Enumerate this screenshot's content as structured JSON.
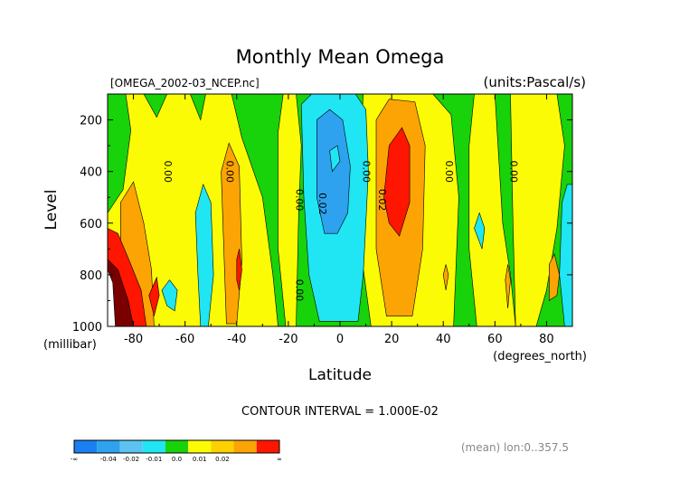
{
  "chart_data": {
    "type": "heatmap",
    "title": "Monthly Mean Omega",
    "file_label": "[OMEGA_2002-03_NCEP.nc]",
    "units_label": "(units:Pascal/s)",
    "xlabel": "Latitude",
    "x_units": "(degrees_north)",
    "ylabel": "Level",
    "y_units": "(millibar)",
    "xlim": [
      -90,
      90
    ],
    "ylim": [
      1000,
      100
    ],
    "x_ticks": [
      -80,
      -60,
      -40,
      -20,
      0,
      20,
      40,
      60,
      80
    ],
    "x_tick_labels": [
      "-80",
      "-60",
      "-40",
      "-20",
      "0",
      "20",
      "40",
      "60",
      "80"
    ],
    "y_ticks": [
      200,
      400,
      600,
      800,
      1000
    ],
    "y_tick_labels": [
      "200",
      "400",
      "600",
      "800",
      "1000"
    ],
    "contour_interval_text": "CONTOUR INTERVAL = 1.000E-02",
    "footer_note": "(mean) lon:0..357.5",
    "contour_labels": [
      {
        "text": "0.00",
        "lat": -68,
        "level": 400
      },
      {
        "text": "0.00",
        "lat": -44,
        "level": 400
      },
      {
        "text": "0.00",
        "lat": -17,
        "level": 510
      },
      {
        "text": "0.02",
        "lat": -8,
        "level": 525
      },
      {
        "text": "0.00",
        "lat": 9,
        "level": 400
      },
      {
        "text": "0.02",
        "lat": 15,
        "level": 510
      },
      {
        "text": "0.00",
        "lat": 41,
        "level": 400
      },
      {
        "text": "0.00",
        "lat": 66,
        "level": 400
      },
      {
        "text": "0.00",
        "lat": -17,
        "level": 860
      }
    ],
    "colorbar": {
      "colors": [
        "#1a7ff0",
        "#2ea2ef",
        "#5cc2f2",
        "#1fe6f2",
        "#18d20a",
        "#fbfb05",
        "#ffd000",
        "#fca404",
        "#ff1600"
      ],
      "labels": [
        "-∞",
        "-0.04",
        "-0.02",
        "-0.01",
        "0.0",
        "0.01",
        "0.02",
        "∞"
      ]
    },
    "regions": [
      {
        "color": "#18d20a",
        "lat": [
          -90,
          90
        ],
        "level": [
          100,
          1000
        ]
      },
      {
        "color": "#fbfb05",
        "poly": [
          [
            -90,
            560
          ],
          [
            -84,
            470
          ],
          [
            -81,
            240
          ],
          [
            -83,
            100
          ],
          [
            -76,
            100
          ],
          [
            -71,
            190
          ],
          [
            -67,
            100
          ],
          [
            -58,
            100
          ],
          [
            -54,
            200
          ],
          [
            -52,
            100
          ],
          [
            -42,
            100
          ],
          [
            -38,
            270
          ],
          [
            -30,
            500
          ],
          [
            -26,
            800
          ],
          [
            -24,
            1000
          ],
          [
            -90,
            1000
          ]
        ]
      },
      {
        "color": "#fbfb05",
        "poly": [
          [
            -22,
            100
          ],
          [
            -17,
            100
          ],
          [
            -15,
            300
          ],
          [
            -16,
            560
          ],
          [
            -17,
            1000
          ],
          [
            -21,
            1000
          ],
          [
            -24,
            700
          ],
          [
            -24,
            250
          ]
        ]
      },
      {
        "color": "#fbfb05",
        "poly": [
          [
            9,
            100
          ],
          [
            15,
            100
          ],
          [
            21,
            100
          ],
          [
            36,
            100
          ],
          [
            43,
            180
          ],
          [
            46,
            500
          ],
          [
            44,
            1000
          ],
          [
            12,
            1000
          ],
          [
            8,
            700
          ],
          [
            8,
            300
          ]
        ]
      },
      {
        "color": "#fbfb05",
        "poly": [
          [
            52,
            100
          ],
          [
            60,
            100
          ],
          [
            63,
            600
          ],
          [
            66,
            800
          ],
          [
            68,
            1000
          ],
          [
            53,
            1000
          ],
          [
            50,
            700
          ],
          [
            50,
            300
          ]
        ]
      },
      {
        "color": "#fbfb05",
        "poly": [
          [
            66,
            100
          ],
          [
            84,
            100
          ],
          [
            87,
            300
          ],
          [
            84,
            620
          ],
          [
            80,
            860
          ],
          [
            76,
            1000
          ],
          [
            68,
            1000
          ],
          [
            67,
            600
          ]
        ]
      },
      {
        "color": "#fca404",
        "poly": [
          [
            -85,
            1000
          ],
          [
            -85,
            520
          ],
          [
            -80,
            440
          ],
          [
            -76,
            600
          ],
          [
            -73,
            780
          ],
          [
            -72,
            1000
          ]
        ]
      },
      {
        "color": "#fca404",
        "poly": [
          [
            -46,
            400
          ],
          [
            -43,
            290
          ],
          [
            -39,
            380
          ],
          [
            -38,
            750
          ],
          [
            -40,
            990
          ],
          [
            -44,
            990
          ],
          [
            -45,
            700
          ]
        ]
      },
      {
        "color": "#fca404",
        "poly": [
          [
            14,
            200
          ],
          [
            19,
            120
          ],
          [
            29,
            130
          ],
          [
            33,
            300
          ],
          [
            32,
            700
          ],
          [
            28,
            960
          ],
          [
            18,
            960
          ],
          [
            14,
            700
          ]
        ]
      },
      {
        "color": "#fca404",
        "poly": [
          [
            40,
            800
          ],
          [
            41,
            760
          ],
          [
            42,
            800
          ],
          [
            41,
            860
          ]
        ]
      },
      {
        "color": "#fca404",
        "poly": [
          [
            64,
            820
          ],
          [
            65,
            760
          ],
          [
            66,
            820
          ],
          [
            65,
            930
          ]
        ]
      },
      {
        "color": "#fca404",
        "poly": [
          [
            81,
            760
          ],
          [
            83,
            720
          ],
          [
            85,
            800
          ],
          [
            84,
            880
          ],
          [
            81,
            900
          ]
        ]
      },
      {
        "color": "#ff1600",
        "poly": [
          [
            -90,
            620
          ],
          [
            -86,
            640
          ],
          [
            -81,
            760
          ],
          [
            -77,
            860
          ],
          [
            -75,
            1000
          ],
          [
            -90,
            1000
          ]
        ]
      },
      {
        "color": "#ff1600",
        "poly": [
          [
            -74,
            880
          ],
          [
            -71,
            810
          ],
          [
            -70,
            880
          ],
          [
            -72,
            960
          ]
        ]
      },
      {
        "color": "#ff1600",
        "poly": [
          [
            19,
            300
          ],
          [
            24,
            230
          ],
          [
            27,
            300
          ],
          [
            27,
            520
          ],
          [
            23,
            650
          ],
          [
            19,
            600
          ],
          [
            17,
            500
          ]
        ]
      },
      {
        "color": "#ff1600",
        "poly": [
          [
            -40,
            740
          ],
          [
            -39,
            700
          ],
          [
            -38,
            780
          ],
          [
            -39,
            860
          ],
          [
            -40,
            820
          ]
        ]
      },
      {
        "color": "#7a0000",
        "poly": [
          [
            -90,
            740
          ],
          [
            -86,
            780
          ],
          [
            -82,
            900
          ],
          [
            -80,
            1000
          ],
          [
            -90,
            1000
          ]
        ]
      },
      {
        "color": "#ffffff",
        "poly": [
          [
            -90,
            780
          ],
          [
            -88,
            830
          ],
          [
            -87,
            1000
          ],
          [
            -90,
            1000
          ]
        ]
      },
      {
        "color": "#1fe6f2",
        "poly": [
          [
            -15,
            140
          ],
          [
            -11,
            100
          ],
          [
            6,
            100
          ],
          [
            10,
            160
          ],
          [
            11,
            400
          ],
          [
            9,
            800
          ],
          [
            7,
            980
          ],
          [
            -8,
            980
          ],
          [
            -12,
            800
          ],
          [
            -14,
            500
          ]
        ]
      },
      {
        "color": "#1fe6f2",
        "poly": [
          [
            -56,
            560
          ],
          [
            -53,
            450
          ],
          [
            -50,
            520
          ],
          [
            -49,
            800
          ],
          [
            -51,
            1000
          ],
          [
            -54,
            1000
          ],
          [
            -55,
            800
          ]
        ]
      },
      {
        "color": "#1fe6f2",
        "poly": [
          [
            -69,
            860
          ],
          [
            -66,
            820
          ],
          [
            -63,
            860
          ],
          [
            -64,
            940
          ],
          [
            -67,
            920
          ]
        ]
      },
      {
        "color": "#1fe6f2",
        "poly": [
          [
            52,
            620
          ],
          [
            54,
            560
          ],
          [
            56,
            620
          ],
          [
            55,
            700
          ]
        ]
      },
      {
        "color": "#1fe6f2",
        "poly": [
          [
            86,
            520
          ],
          [
            88,
            450
          ],
          [
            90,
            450
          ],
          [
            90,
            1000
          ],
          [
            87,
            1000
          ],
          [
            85,
            800
          ]
        ]
      },
      {
        "color": "#2ea2ef",
        "poly": [
          [
            -9,
            200
          ],
          [
            -4,
            160
          ],
          [
            1,
            200
          ],
          [
            4,
            380
          ],
          [
            3,
            560
          ],
          [
            -1,
            640
          ],
          [
            -6,
            640
          ],
          [
            -9,
            500
          ]
        ]
      },
      {
        "color": "#1fe6f2",
        "poly": [
          [
            -4,
            320
          ],
          [
            -1,
            300
          ],
          [
            0,
            360
          ],
          [
            -3,
            400
          ]
        ]
      }
    ]
  }
}
